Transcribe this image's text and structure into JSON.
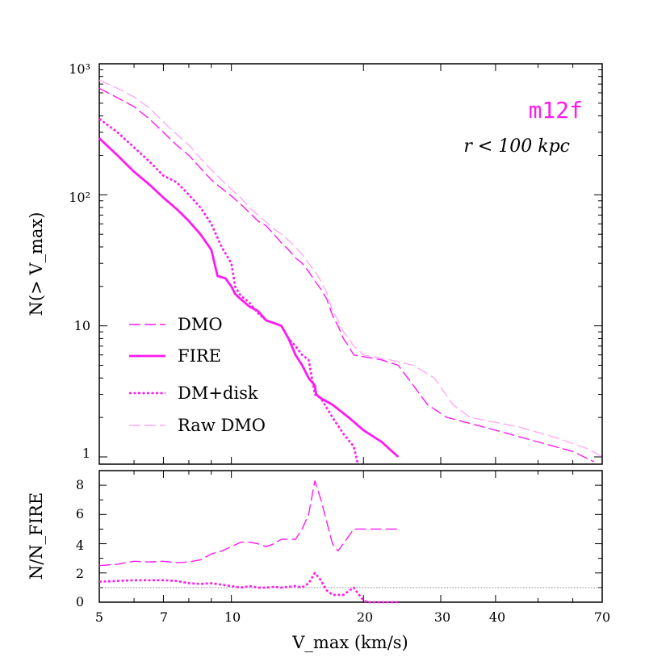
{
  "colors": {
    "magenta": "#ff1af0",
    "pale": "#ffaaf3",
    "axis": "#000000",
    "ref": "#888888"
  },
  "chart_data": [
    {
      "type": "line",
      "panel": "top",
      "xscale": "log",
      "yscale": "log",
      "xlim": [
        5,
        70
      ],
      "ylim": [
        0.88,
        1000
      ],
      "ylabel": "N(> V_max)",
      "ytick_labels": [
        "1",
        "10",
        "10²",
        "10³"
      ],
      "name_label": "m12f",
      "radius_label": "r < 100 kpc",
      "legend_position": "lower-left",
      "series": [
        {
          "name": "DMO",
          "style": "long-dash",
          "color": "magenta",
          "width": 1.4,
          "points": [
            [
              5,
              650
            ],
            [
              5.5,
              550
            ],
            [
              6,
              470
            ],
            [
              6.5,
              380
            ],
            [
              7,
              300
            ],
            [
              7.5,
              240
            ],
            [
              8,
              200
            ],
            [
              8.5,
              160
            ],
            [
              9,
              130
            ],
            [
              9.5,
              112
            ],
            [
              10,
              98
            ],
            [
              10.5,
              85
            ],
            [
              11,
              73
            ],
            [
              11.5,
              63
            ],
            [
              12,
              58
            ],
            [
              12.5,
              50
            ],
            [
              13,
              43
            ],
            [
              13.5,
              38
            ],
            [
              14,
              33
            ],
            [
              14.5,
              30
            ],
            [
              15,
              26
            ],
            [
              15.5,
              22
            ],
            [
              16,
              19
            ],
            [
              16.5,
              16
            ],
            [
              17,
              12
            ],
            [
              17.5,
              10
            ],
            [
              18,
              8
            ],
            [
              18.5,
              7
            ],
            [
              19,
              6
            ],
            [
              22,
              5.5
            ],
            [
              24,
              5
            ],
            [
              26,
              3.5
            ],
            [
              28,
              2.5
            ],
            [
              31,
              2
            ],
            [
              40,
              1.6
            ],
            [
              50,
              1.3
            ],
            [
              60,
              1.1
            ],
            [
              67,
              0.92
            ]
          ]
        },
        {
          "name": "FIRE",
          "style": "solid",
          "color": "magenta",
          "width": 2.8,
          "points": [
            [
              5,
              270
            ],
            [
              5.5,
              200
            ],
            [
              6,
              150
            ],
            [
              6.5,
              120
            ],
            [
              7,
              95
            ],
            [
              7.5,
              78
            ],
            [
              8,
              63
            ],
            [
              8.5,
              50
            ],
            [
              9,
              38
            ],
            [
              9.3,
              24
            ],
            [
              9.7,
              23
            ],
            [
              10,
              20
            ],
            [
              10.2,
              17.5
            ],
            [
              10.5,
              16
            ],
            [
              11,
              14
            ],
            [
              11.5,
              13
            ],
            [
              12,
              11
            ],
            [
              12.5,
              10.5
            ],
            [
              13,
              10
            ],
            [
              13.5,
              8
            ],
            [
              14,
              6
            ],
            [
              14.5,
              5
            ],
            [
              15,
              4
            ],
            [
              15.5,
              3.5
            ],
            [
              15.6,
              3
            ],
            [
              16,
              2.8
            ],
            [
              17,
              2.5
            ],
            [
              18.5,
              2
            ],
            [
              20,
              1.6
            ],
            [
              22,
              1.3
            ],
            [
              24,
              1
            ]
          ]
        },
        {
          "name": "DM+disk",
          "style": "dotted",
          "color": "magenta",
          "width": 2.6,
          "points": [
            [
              5,
              380
            ],
            [
              5.5,
              300
            ],
            [
              6,
              230
            ],
            [
              6.5,
              180
            ],
            [
              7,
              140
            ],
            [
              7.5,
              125
            ],
            [
              8,
              100
            ],
            [
              8.5,
              80
            ],
            [
              9,
              60
            ],
            [
              9.5,
              40
            ],
            [
              10,
              30
            ],
            [
              10.2,
              20
            ],
            [
              10.5,
              17
            ],
            [
              11,
              15
            ],
            [
              11.5,
              12.5
            ],
            [
              12,
              11
            ],
            [
              12.5,
              10.5
            ],
            [
              13,
              10
            ],
            [
              13.5,
              8
            ],
            [
              14,
              7
            ],
            [
              14.5,
              6
            ],
            [
              15,
              5.5
            ],
            [
              15.5,
              3
            ],
            [
              16,
              2.8
            ],
            [
              17,
              2
            ],
            [
              18,
              1.5
            ],
            [
              19,
              1.2
            ],
            [
              19.4,
              0.9
            ]
          ]
        },
        {
          "name": "Raw DMO",
          "style": "long-dash",
          "color": "pale",
          "width": 1.4,
          "points": [
            [
              5,
              750
            ],
            [
              5.5,
              650
            ],
            [
              6,
              560
            ],
            [
              6.5,
              460
            ],
            [
              7,
              360
            ],
            [
              7.5,
              290
            ],
            [
              8,
              240
            ],
            [
              8.5,
              190
            ],
            [
              9,
              155
            ],
            [
              9.5,
              130
            ],
            [
              10,
              110
            ],
            [
              10.5,
              95
            ],
            [
              11,
              80
            ],
            [
              11.5,
              70
            ],
            [
              12,
              62
            ],
            [
              12.5,
              55
            ],
            [
              13,
              50
            ],
            [
              13.5,
              45
            ],
            [
              14,
              40
            ],
            [
              14.5,
              35
            ],
            [
              15,
              30
            ],
            [
              15.5,
              26
            ],
            [
              16,
              22
            ],
            [
              16.5,
              18
            ],
            [
              17,
              13
            ],
            [
              17.5,
              11
            ],
            [
              18,
              9
            ],
            [
              18.5,
              8
            ],
            [
              19,
              7
            ],
            [
              19.5,
              6.5
            ],
            [
              20,
              6
            ],
            [
              23,
              5.5
            ],
            [
              26,
              5
            ],
            [
              29,
              4
            ],
            [
              32,
              2.5
            ],
            [
              35,
              2
            ],
            [
              45,
              1.7
            ],
            [
              55,
              1.4
            ],
            [
              65,
              1.15
            ],
            [
              70,
              1
            ]
          ]
        }
      ]
    },
    {
      "type": "line",
      "panel": "bottom",
      "xscale": "log",
      "yscale": "linear",
      "xlim": [
        5,
        70
      ],
      "ylim": [
        0,
        9
      ],
      "xlabel": "V_max (km/s)",
      "ylabel": "N/N_FIRE",
      "xticks": [
        5,
        7,
        10,
        20,
        30,
        40,
        70
      ],
      "xtick_labels": [
        "5",
        "7",
        "10",
        "20",
        "30",
        "40",
        "70"
      ],
      "yticks": [
        0,
        2,
        4,
        6,
        8
      ],
      "reference_line": 1,
      "series": [
        {
          "name": "DMO / FIRE",
          "style": "long-dash",
          "color": "magenta",
          "width": 1.4,
          "points": [
            [
              5,
              2.5
            ],
            [
              5.5,
              2.6
            ],
            [
              6,
              2.8
            ],
            [
              6.5,
              2.75
            ],
            [
              7,
              2.8
            ],
            [
              7.5,
              2.7
            ],
            [
              8,
              2.75
            ],
            [
              8.5,
              2.9
            ],
            [
              9,
              3.3
            ],
            [
              9.5,
              3.5
            ],
            [
              10,
              3.8
            ],
            [
              10.5,
              4.1
            ],
            [
              11,
              4.1
            ],
            [
              11.5,
              4
            ],
            [
              12,
              3.8
            ],
            [
              12.5,
              4
            ],
            [
              13,
              4.3
            ],
            [
              14,
              4.3
            ],
            [
              14.5,
              5
            ],
            [
              15,
              6
            ],
            [
              15.5,
              8.3
            ],
            [
              16,
              7
            ],
            [
              17,
              4
            ],
            [
              17.5,
              3.5
            ],
            [
              18.5,
              4.5
            ],
            [
              19,
              5
            ],
            [
              24,
              5
            ]
          ]
        },
        {
          "name": "DM+disk / FIRE",
          "style": "dotted",
          "color": "magenta",
          "width": 2.6,
          "points": [
            [
              5,
              1.4
            ],
            [
              5.5,
              1.45
            ],
            [
              6,
              1.5
            ],
            [
              7,
              1.5
            ],
            [
              7.5,
              1.45
            ],
            [
              8,
              1.3
            ],
            [
              8.5,
              1.25
            ],
            [
              9,
              1.3
            ],
            [
              9.5,
              1.2
            ],
            [
              10,
              1.1
            ],
            [
              10.5,
              1.0
            ],
            [
              11,
              1.1
            ],
            [
              11.5,
              1.0
            ],
            [
              12,
              1.0
            ],
            [
              12.5,
              1.05
            ],
            [
              13,
              1.0
            ],
            [
              13.5,
              1.05
            ],
            [
              14,
              1.1
            ],
            [
              14.5,
              1.0
            ],
            [
              15,
              1.3
            ],
            [
              15.5,
              2.0
            ],
            [
              16,
              1.5
            ],
            [
              16.5,
              0.8
            ],
            [
              17,
              0.5
            ],
            [
              18,
              0.5
            ],
            [
              19,
              1.0
            ],
            [
              20,
              0.1
            ],
            [
              20.5,
              0
            ],
            [
              24,
              0
            ]
          ]
        }
      ]
    }
  ]
}
